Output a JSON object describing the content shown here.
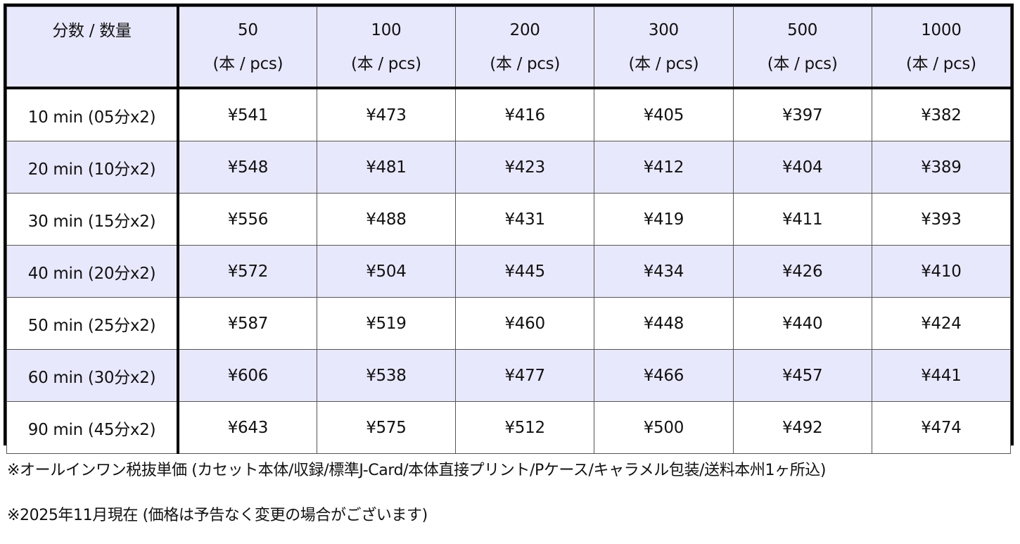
{
  "table": {
    "corner_label": "分数 / 数量",
    "quantities": [
      {
        "qty": "50",
        "unit": "(本 / pcs)"
      },
      {
        "qty": "100",
        "unit": "(本 / pcs)"
      },
      {
        "qty": "200",
        "unit": "(本 / pcs)"
      },
      {
        "qty": "300",
        "unit": "(本 / pcs)"
      },
      {
        "qty": "500",
        "unit": "(本 / pcs)"
      },
      {
        "qty": "1000",
        "unit": "(本 / pcs)"
      }
    ],
    "rows": [
      {
        "duration": "10 min (05分x2)",
        "prices": [
          "¥541",
          "¥473",
          "¥416",
          "¥405",
          "¥397",
          "¥382"
        ]
      },
      {
        "duration": "20 min (10分x2)",
        "prices": [
          "¥548",
          "¥481",
          "¥423",
          "¥412",
          "¥404",
          "¥389"
        ]
      },
      {
        "duration": "30 min  (15分x2)",
        "prices": [
          "¥556",
          "¥488",
          "¥431",
          "¥419",
          "¥411",
          "¥393"
        ]
      },
      {
        "duration": "40 min  (20分x2)",
        "prices": [
          "¥572",
          "¥504",
          "¥445",
          "¥434",
          "¥426",
          "¥410"
        ]
      },
      {
        "duration": "50 min  (25分x2)",
        "prices": [
          "¥587",
          "¥519",
          "¥460",
          "¥448",
          "¥440",
          "¥424"
        ]
      },
      {
        "duration": "60 min  (30分x2)",
        "prices": [
          "¥606",
          "¥538",
          "¥477",
          "¥466",
          "¥457",
          "¥441"
        ]
      },
      {
        "duration": "90 min  (45分x2)",
        "prices": [
          "¥643",
          "¥575",
          "¥512",
          "¥500",
          "¥492",
          "¥474"
        ]
      }
    ]
  },
  "notes": [
    "※オールインワン税抜単価 (カセット本体/収録/標準J-Card/本体直接プリント/Pケース/キャラメル包装/送料本州1ヶ所込)",
    "※2025年11月現在 (価格は予告なく変更の場合がございます)"
  ],
  "colors": {
    "header_fill": "#e8e8fc",
    "shaded_row_fill": "#e8e8fc",
    "border": "#000000"
  }
}
